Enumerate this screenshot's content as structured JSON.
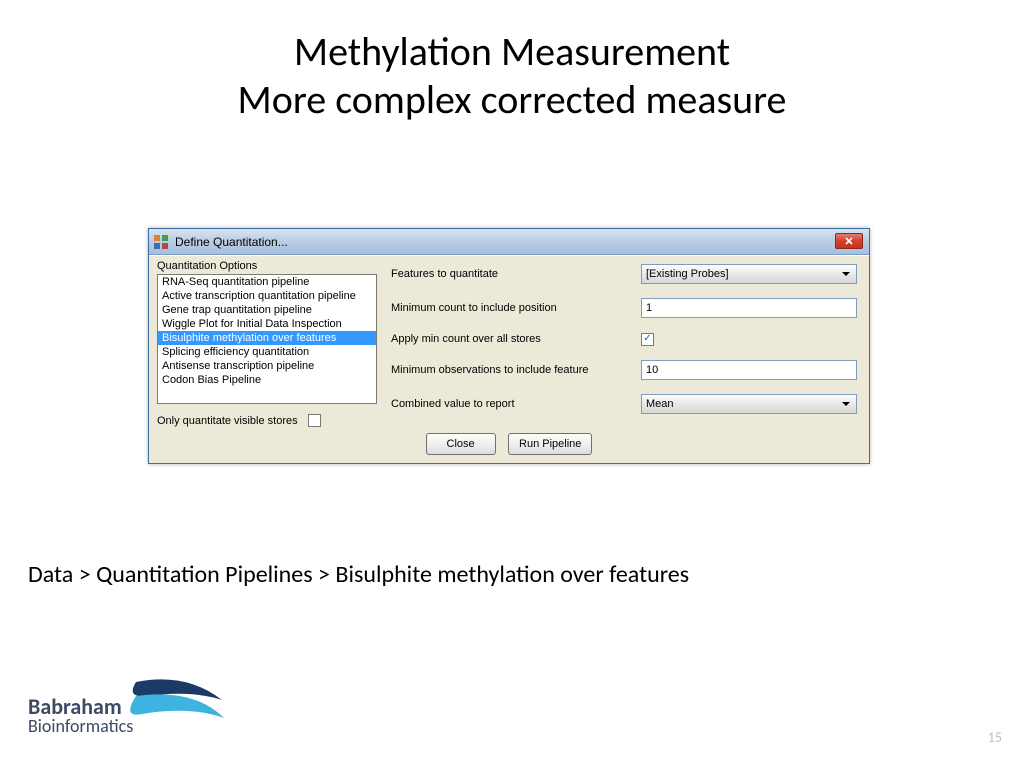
{
  "slide": {
    "title_line1": "Methylation Measurement",
    "title_line2": "More complex corrected measure",
    "breadcrumb": "Data > Quantitation Pipelines > Bisulphite methylation over features",
    "page_number": "15"
  },
  "dialog": {
    "title": "Define Quantitation...",
    "options_label": "Quantitation Options",
    "options": [
      {
        "label": "RNA-Seq quantitation pipeline",
        "selected": false
      },
      {
        "label": "Active transcription quantitation pipeline",
        "selected": false
      },
      {
        "label": "Gene trap quantitation pipeline",
        "selected": false
      },
      {
        "label": "Wiggle Plot for Initial Data Inspection",
        "selected": false
      },
      {
        "label": "Bisulphite methylation over features",
        "selected": true
      },
      {
        "label": "Splicing efficiency quantitation",
        "selected": false
      },
      {
        "label": "Antisense transcription pipeline",
        "selected": false
      },
      {
        "label": "Codon Bias Pipeline",
        "selected": false
      }
    ],
    "visible_stores_label": "Only quantitate visible stores",
    "visible_stores_checked": false,
    "fields": {
      "features_label": "Features to quantitate",
      "features_value": "[Existing Probes]",
      "min_count_label": "Minimum count to include position",
      "min_count_value": "1",
      "apply_min_label": "Apply min count over all stores",
      "apply_min_checked": true,
      "min_obs_label": "Minimum observations to include feature",
      "min_obs_value": "10",
      "combined_label": "Combined value to report",
      "combined_value": "Mean"
    },
    "buttons": {
      "close": "Close",
      "run": "Run Pipeline"
    }
  },
  "logo": {
    "line1": "Babraham",
    "line2": "Bioinformatics",
    "text_color": "#3c4a63",
    "swoosh_dark": "#1b3a66",
    "swoosh_light": "#3fb3e0"
  },
  "colors": {
    "titlebar_grad_top": "#d7e4f2",
    "titlebar_grad_bot": "#a7bfdc",
    "dialog_bg": "#ece9d8",
    "select_bg": "#3399ff",
    "close_btn": "#d4402e"
  }
}
